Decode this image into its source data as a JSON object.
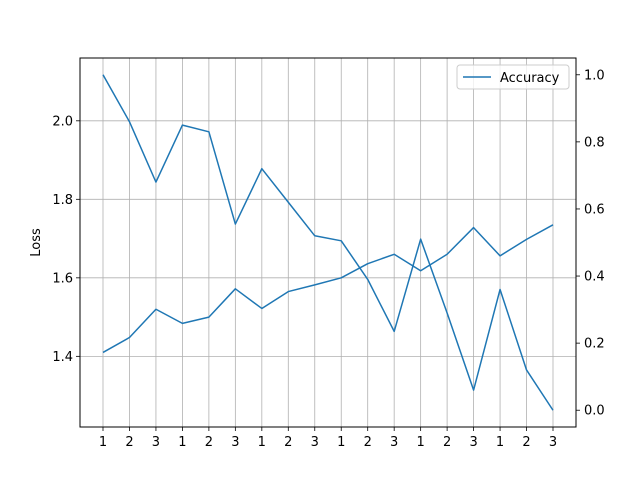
{
  "chart_data": {
    "type": "line",
    "categories": [
      "1",
      "2",
      "3",
      "1",
      "2",
      "3",
      "1",
      "2",
      "3",
      "1",
      "2",
      "3",
      "1",
      "2",
      "3",
      "1",
      "2",
      "3"
    ],
    "ylabel_left": "Loss",
    "ylabel_right": "",
    "xlabel": "",
    "ylim_left": [
      1.22,
      2.16
    ],
    "ylim_right": [
      -0.05,
      1.05
    ],
    "yticks_left": [
      1.4,
      1.6,
      1.8,
      2.0
    ],
    "yticks_right": [
      0.0,
      0.2,
      0.4,
      0.6,
      0.8,
      1.0
    ],
    "grid": true,
    "legend_position": "upper-right",
    "colors": {
      "series": "#1f77b4",
      "grid": "#b0b0b0",
      "axis": "#000000"
    },
    "series": [
      {
        "name": "Accuracy",
        "axis": "right",
        "legend": true,
        "values": [
          1.0,
          0.86,
          0.68,
          0.85,
          0.83,
          0.555,
          0.72,
          0.62,
          0.52,
          0.505,
          0.39,
          0.235,
          0.51,
          0.29,
          0.06,
          0.36,
          0.12,
          0.0
        ]
      },
      {
        "name": "",
        "axis": "left",
        "legend": false,
        "values": [
          1.41,
          1.448,
          1.52,
          1.484,
          1.5,
          1.572,
          1.522,
          1.565,
          1.582,
          1.6,
          1.636,
          1.66,
          1.618,
          1.66,
          1.728,
          1.656,
          1.698,
          1.735
        ]
      }
    ]
  }
}
